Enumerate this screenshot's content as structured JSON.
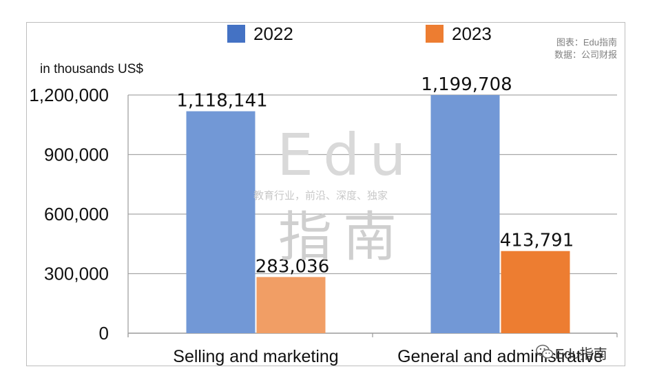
{
  "legend": [
    {
      "label": "2022",
      "color": "#4472c4"
    },
    {
      "label": "2023",
      "color": "#ed7d31"
    }
  ],
  "source": {
    "line1": "图表：Edu指南",
    "line2": "数据：公司财报"
  },
  "unit_label": "in thousands US$",
  "watermark": {
    "big": "Edu",
    "tagline": "教育行业，前沿、深度、独家",
    "cn": "指南"
  },
  "brand": {
    "icon": "wechat-icon",
    "text": "Edu指南"
  },
  "chart_data": {
    "type": "bar",
    "categories": [
      "Selling and marketing",
      "General and administrative"
    ],
    "series": [
      {
        "name": "2022",
        "values": [
          1118141,
          1199708
        ],
        "labels": [
          "1,118,141",
          "1,199,708"
        ],
        "colors": [
          "#7298d6",
          "#7298d6"
        ]
      },
      {
        "name": "2023",
        "values": [
          283036,
          413791
        ],
        "labels": [
          "283,036",
          "413,791"
        ],
        "colors": [
          "#f19e65",
          "#ed7d31"
        ]
      }
    ],
    "yticks": [
      0,
      300000,
      600000,
      900000,
      1200000
    ],
    "ytick_labels": [
      "0",
      "300,000",
      "600,000",
      "900,000",
      "1,200,000"
    ],
    "ylim": [
      0,
      1200000
    ],
    "ylabel": "in thousands US$",
    "grid": true,
    "legend_position": "top"
  }
}
